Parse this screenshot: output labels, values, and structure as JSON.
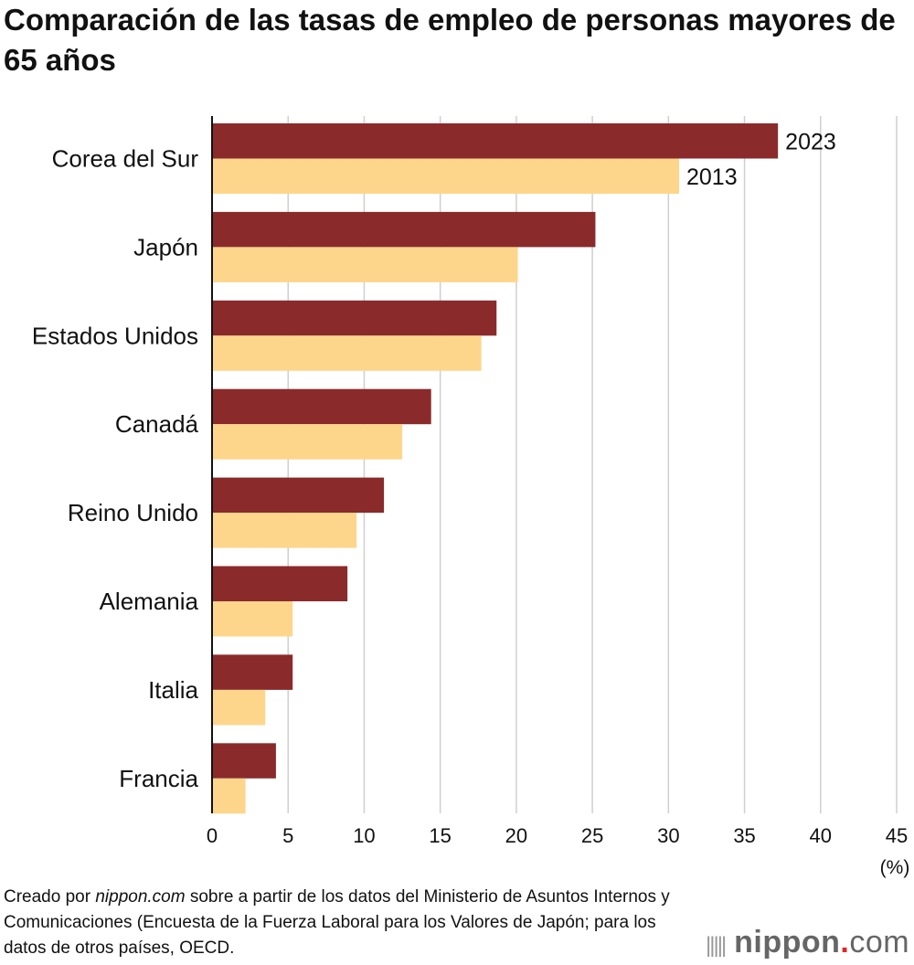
{
  "title": "Comparación de las tasas de empleo de personas mayores de 65 años",
  "footer": {
    "prefix": "Creado por ",
    "source_site": "nippon.com",
    "text": " sobre a partir de los datos del Ministerio de Asuntos Internos y Comunicaciones (Encuesta de la Fuerza Laboral para los Valores de Japón; para los datos de otros países, OECD."
  },
  "logo": {
    "name": "nippon",
    "dot": ".",
    "suffix": "com"
  },
  "chart_data": {
    "type": "bar",
    "orientation": "horizontal",
    "categories": [
      "Corea del Sur",
      "Japón",
      "Estados Unidos",
      "Canadá",
      "Reino Unido",
      "Alemania",
      "Italia",
      "Francia"
    ],
    "series": [
      {
        "name": "2023",
        "color": "#8b2a2b",
        "values": [
          37.2,
          25.2,
          18.7,
          14.4,
          11.3,
          8.9,
          5.3,
          4.2
        ]
      },
      {
        "name": "2013",
        "color": "#fdd68b",
        "values": [
          30.7,
          20.1,
          17.7,
          12.5,
          9.5,
          5.3,
          3.5,
          2.2
        ]
      }
    ],
    "xlim": [
      0,
      45
    ],
    "xticks": [
      "0",
      "5",
      "10",
      "15",
      "20",
      "25",
      "30",
      "35",
      "40",
      "45"
    ],
    "xunit": "(%)",
    "grid": "vertical",
    "legend": "labels at end of first category bars"
  }
}
